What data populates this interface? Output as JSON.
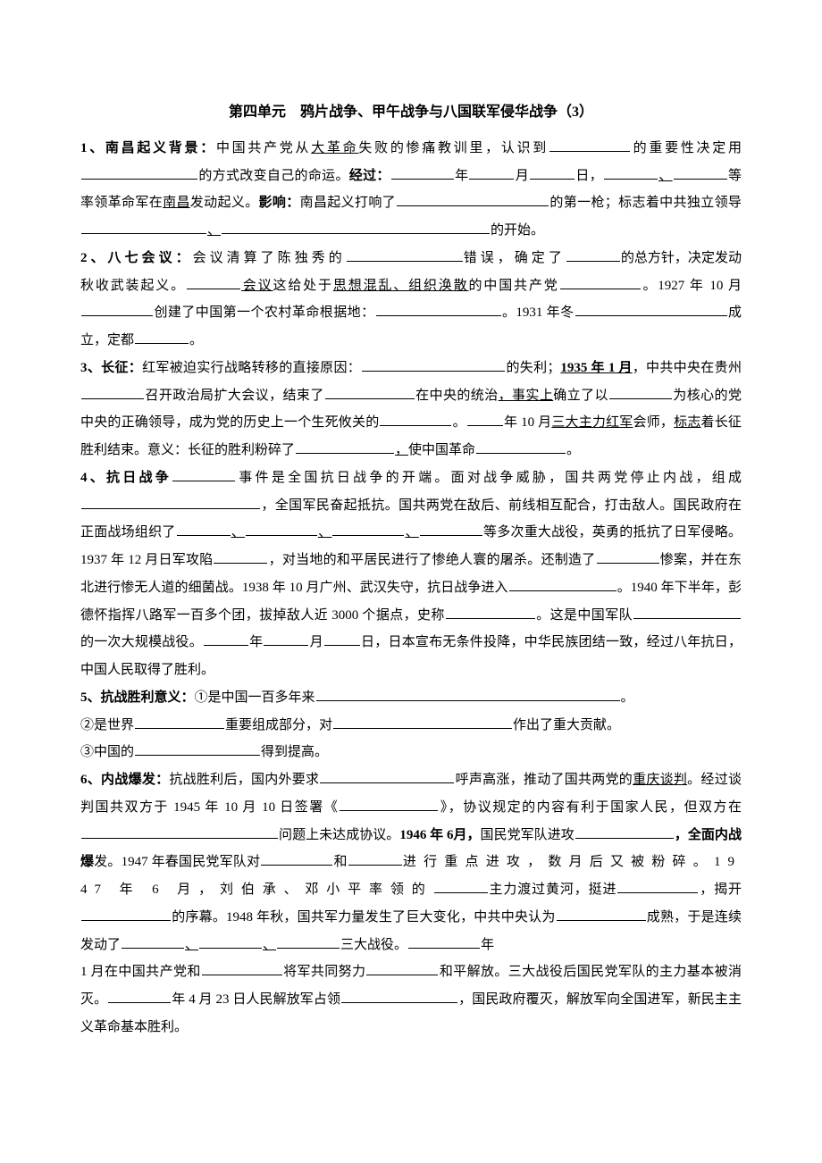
{
  "title": "第四单元　鸦片战争、甲午战争与八国联军侵华战争（3）",
  "p1": {
    "lead": "1、南昌起义背景：",
    "t1": "中国共产党从",
    "u1": "大革命",
    "t2": "失败的惨痛教训里，认识到",
    "t3": "的重要性决定用",
    "t4": "的方式改变自己的命运。",
    "lead2": "经过：",
    "y": "年",
    "m": "月",
    "d": "日，",
    "dot": "、",
    "t5": "等率领革命军在",
    "u2": "南昌",
    "t6": "发动起义。",
    "lead3": "影响：",
    "t7": "南昌起义打响了",
    "t8": "的第一枪；标志着中共独立领导",
    "t9": "的开始。"
  },
  "p2": {
    "lead": "2、八七会议：",
    "t1": "会议清算了陈独秀的",
    "t2": "错误，确定了",
    "t3": "的总方针，决定发动秋收武装起义。",
    "u1": "会议",
    "t4": "这给处于",
    "u2": "思想混乱、组织涣散",
    "t5": "的中国共产党",
    "t6": "。1927 年 10 月",
    "t7": "创建了中国第一个农村革命根据地：",
    "t8": "。1931 年冬",
    "t9": "成立，定都",
    "t10": "。"
  },
  "p3": {
    "lead": "3、长征：",
    "t1": "红军被迫实行战略转移的直接原因：",
    "t2": "的失利；",
    "u1": "1935 年 1 月",
    "t3": "，中共中央在贵州",
    "t4": "召开政治局扩大会议，结束了",
    "t5": "在中央的统治",
    "u2": "，事实上",
    "t6": "确立了以",
    "t7": "为核心的党中央的正确领导，成为党的历史上一个生死攸关的",
    "t8": "。",
    "t9": "年 10 月",
    "u3": "三大主力红军",
    "t10": "会师，",
    "u4": "标志",
    "t11": "着长征胜利结束。意义：长征的胜利粉碎了",
    "u5": "，",
    "t12": "使中国革命",
    "t13": "。"
  },
  "p4": {
    "lead": "4、抗日战争",
    "t1": "事件是全国抗日战争的开端。面对战争威胁，国共两党停止内战，组成",
    "t2": "，全国军民奋起抵抗。国共两党在敌后、前线相互配合，打击敌人。国民政府在正面战场组织了",
    "dot": "、",
    "t3": "等多次重大战役，英勇的抵抗了日军侵略。1937 年 12 月日军攻陷",
    "t4": "，对当地的和平居民进行了惨绝人寰的屠杀。还制造了",
    "t5": "惨案，并在东北进行惨无人道的细菌战。1938 年 10 月广州、武汉失守，抗日战争进入",
    "t6": "。1940 年下半年，彭德怀指挥八路军一百多个团，拔掉敌人近 3000 个据点，史称",
    "t7": "。这是中国军队",
    "t8": "的一次大规模战役。",
    "y": "年",
    "m": "月",
    "d": "日，日本宣布无条件投降，中华民族团结一致，经过八年抗日，中国人民取得了胜利。"
  },
  "p5": {
    "lead": "5、抗战胜利意义：",
    "t1": "①是中国一百多年来",
    "t2": "。",
    "t3": "②是世界",
    "t4": "重要组成部分，对",
    "t5": "作出了重大贡献。",
    "t6": "③中国的",
    "t7": "得到提高。"
  },
  "p6": {
    "lead": "6、内战爆发：",
    "t1": "抗战胜利后，国内外要求",
    "t2": "呼声高涨，推动了国共两党的",
    "u1": "重庆谈判",
    "t3": "。经过谈判国共双方于 1945 年 10 月 10 日签署《",
    "t4": "》，协议规定的内容有利于国家人民，但双方在",
    "t5": "问题上未达成协议。",
    "b1": "1946 年 6月，",
    "t6": "国民党军队进攻",
    "b2": "，全面内战爆",
    "t7": "发。1947 年春国民党军队对",
    "t8": "和",
    "t8a": "进行重点进攻，数月后又被粉碎。1947 年 6 月，刘伯承、邓小平率领的",
    "t9": "主力渡过黄河，挺进",
    "t10": "，揭开",
    "t11": "的序幕。1948 年秋，国共军力量发生了巨大变化，中共中央认为",
    "t12": "成熟，于是连续发动了",
    "dot": "、",
    "t13": "三大战役。",
    "t14": "年",
    "t15": "1 月在中国共产党和",
    "t16": "将军共同努力",
    "t17": "和平解放。三大战役后国民党军队的主力基本被消灭。",
    "t18": "年 4 月 23 日人民解放军占领",
    "t19": "，国民政府覆灭，解放军向全国进军，新民主主义革命基本胜利。"
  }
}
